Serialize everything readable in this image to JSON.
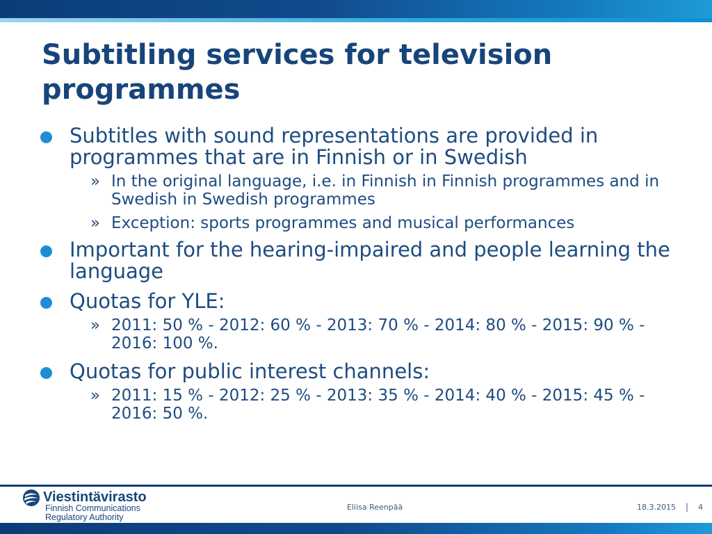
{
  "slide": {
    "title": "Subtitling services for television programmes"
  },
  "bullets": [
    {
      "text": "Subtitles with sound representations are provided in programmes that are in Finnish or in Swedish",
      "sub": [
        "In the original language, i.e. in Finnish in Finnish programmes and in Swedish in Swedish programmes",
        "Exception: sports programmes and musical performances"
      ]
    },
    {
      "text": "Important for the hearing-impaired and people learning the language",
      "sub": []
    },
    {
      "text": "Quotas for YLE:",
      "sub": [
        "2011: 50 % - 2012: 60 % - 2013: 70 % - 2014: 80 % - 2015: 90 % - 2016: 100 %."
      ]
    },
    {
      "text": "Quotas for public interest channels:",
      "sub": [
        "2011: 15 % - 2012: 25 % - 2013: 35 % - 2014: 40 % - 2015: 45 % - 2016: 50 %."
      ]
    }
  ],
  "footer": {
    "logo_name": "Viestintävirasto",
    "logo_sub_1": "Finnish Communications",
    "logo_sub_2": "Regulatory Authority",
    "author": "Eliisa Reenpää",
    "date": "18.3.2015",
    "separator": "|",
    "page": "4"
  },
  "colors": {
    "title": "#17457a",
    "text": "#1e4c80",
    "bullet": "#1f8dd6",
    "band_dark": "#0b3c7a",
    "band_light": "#1f9ad8"
  },
  "icons": {
    "logo_mark": "globe-swirl-icon",
    "level1_bullet": "circle-bullet",
    "level2_bullet": "chevron-double-right"
  }
}
